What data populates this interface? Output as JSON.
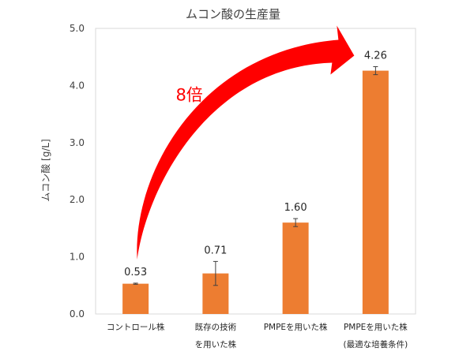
{
  "chart_data": {
    "type": "bar",
    "title": "ムコン酸の生産量",
    "ylabel": "ムコン酸 [g/L]",
    "xlabel": "",
    "ylim": [
      0,
      5
    ],
    "yticks": [
      "0.0",
      "1.0",
      "2.0",
      "3.0",
      "4.0",
      "5.0"
    ],
    "grid": false,
    "categories": [
      [
        "コントロール株"
      ],
      [
        "既存の技術",
        "を用いた株"
      ],
      [
        "PMPEを用いた株"
      ],
      [
        "PMPEを用いた株",
        "(最適な培養条件)"
      ]
    ],
    "values": [
      0.53,
      0.71,
      1.6,
      4.26
    ],
    "value_labels": [
      "0.53",
      "0.71",
      "1.60",
      "4.26"
    ],
    "error": [
      0.01,
      0.21,
      0.07,
      0.07
    ],
    "bar_color": "#ed7d31",
    "annotation": {
      "text": "8倍",
      "color": "#ff0000",
      "from_category": 0,
      "to_category": 3
    }
  }
}
